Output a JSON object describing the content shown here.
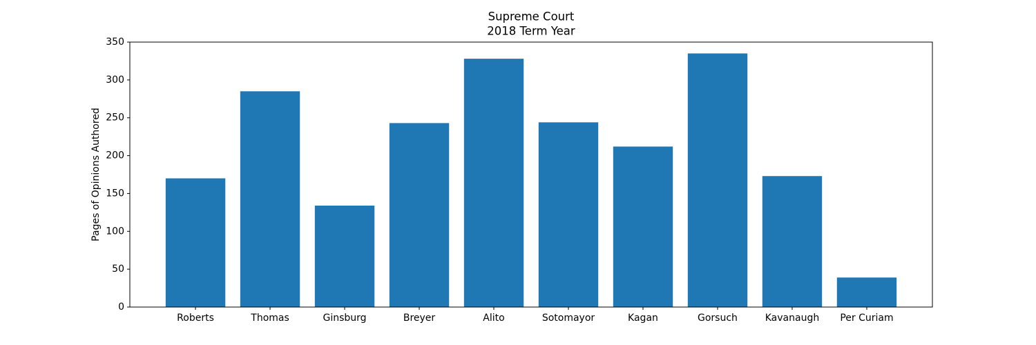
{
  "chart_data": {
    "type": "bar",
    "title": "Supreme Court",
    "subtitle": "2018 Term Year",
    "y_label": "Pages of Opinions Authored",
    "categories": [
      "Roberts",
      "Thomas",
      "Ginsburg",
      "Breyer",
      "Alito",
      "Sotomayor",
      "Kagan",
      "Gorsuch",
      "Kavanaugh",
      "Per Curiam"
    ],
    "values": [
      170,
      285,
      134,
      243,
      328,
      244,
      212,
      335,
      173,
      39
    ],
    "color": "#1f77b4",
    "ylim": [
      0,
      350
    ],
    "yticks": [
      0,
      50,
      100,
      150,
      200,
      250,
      300,
      350
    ],
    "grid": false
  }
}
